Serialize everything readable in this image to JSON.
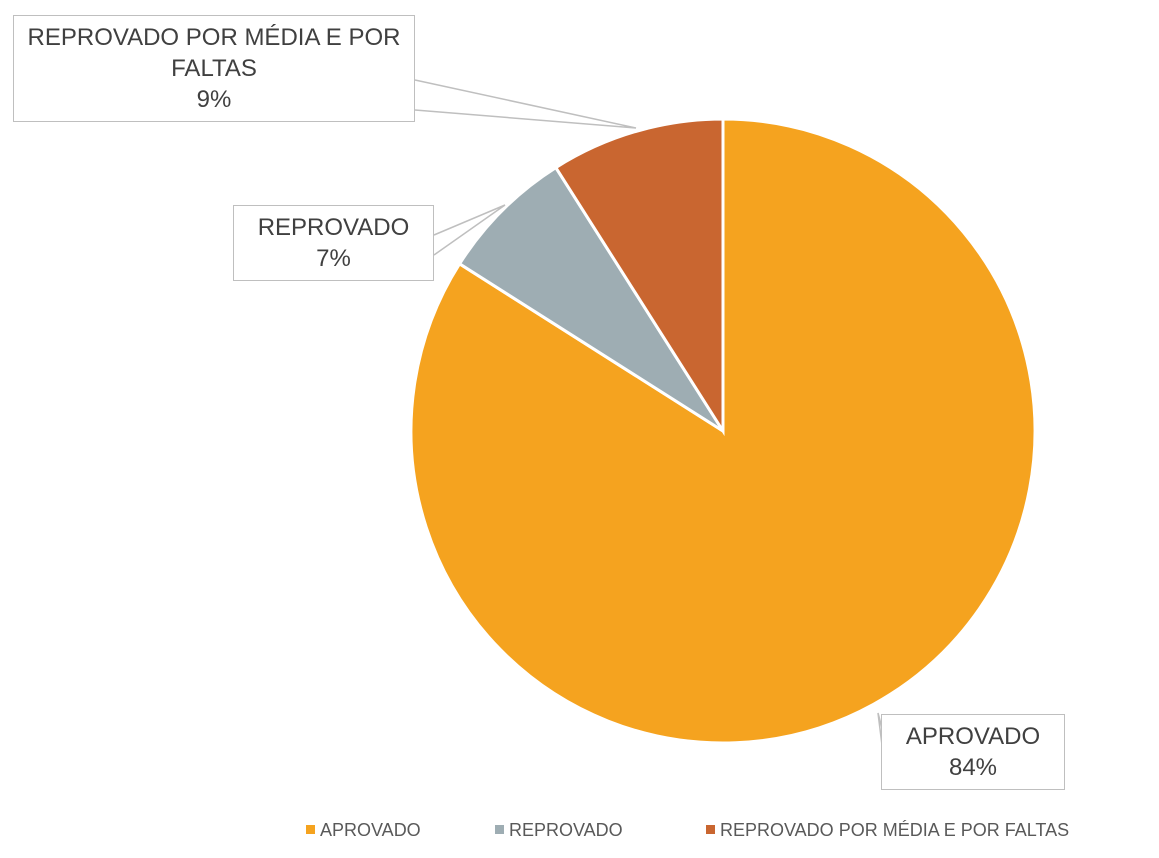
{
  "chart_data": {
    "type": "pie",
    "categories": [
      "APROVADO",
      "REPROVADO",
      "REPROVADO POR MÉDIA E POR FALTAS"
    ],
    "values": [
      84,
      7,
      9
    ],
    "value_labels": [
      "84%",
      "7%",
      "9%"
    ],
    "colors": [
      "#f5a31f",
      "#9eadb3",
      "#c96630"
    ],
    "legend": "bottom"
  }
}
